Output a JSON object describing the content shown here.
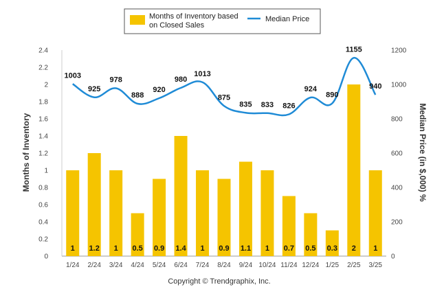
{
  "chart_data": {
    "type": "bar",
    "categories": [
      "1/24",
      "2/24",
      "3/24",
      "4/24",
      "5/24",
      "6/24",
      "7/24",
      "8/24",
      "9/24",
      "10/24",
      "11/24",
      "12/24",
      "1/25",
      "2/25",
      "3/25"
    ],
    "series": [
      {
        "name": "Months of Inventory based on Closed Sales",
        "name_lines": [
          "Months of Inventory based",
          "on Closed Sales"
        ],
        "type": "bar",
        "axis": "left",
        "color": "#F5C400",
        "values": [
          1,
          1.2,
          1,
          0.5,
          0.9,
          1.4,
          1,
          0.9,
          1.1,
          1,
          0.7,
          0.5,
          0.3,
          2,
          1
        ],
        "labels": [
          "1",
          "1.2",
          "1",
          "0.5",
          "0.9",
          "1.4",
          "1",
          "0.9",
          "1.1",
          "1",
          "0.7",
          "0.5",
          "0.3",
          "2",
          "1"
        ]
      },
      {
        "name": "Median Price",
        "type": "line",
        "axis": "right",
        "color": "#1F8BD6",
        "values": [
          1003,
          925,
          978,
          888,
          920,
          980,
          1013,
          875,
          835,
          833,
          826,
          924,
          890,
          1155,
          940
        ],
        "labels": [
          "1003",
          "925",
          "978",
          "888",
          "920",
          "980",
          "1013",
          "875",
          "835",
          "833",
          "826",
          "924",
          "890",
          "1155",
          "940"
        ]
      }
    ],
    "ylabel": "Months of Inventory",
    "y2label": "Median Price (in $,000) %",
    "ylim": [
      0,
      2.4
    ],
    "y2lim": [
      0,
      1200
    ],
    "yticks": [
      "0",
      "0.2",
      "0.4",
      "0.6",
      "0.8",
      "1",
      "1.2",
      "1.4",
      "1.6",
      "1.8",
      "2",
      "2.2",
      "2.4"
    ],
    "y2ticks": [
      "0",
      "200",
      "400",
      "600",
      "800",
      "1000",
      "1200"
    ],
    "grid": false,
    "legend": "top-center"
  },
  "footer": {
    "copyright": "Copyright © Trendgraphix, Inc."
  }
}
